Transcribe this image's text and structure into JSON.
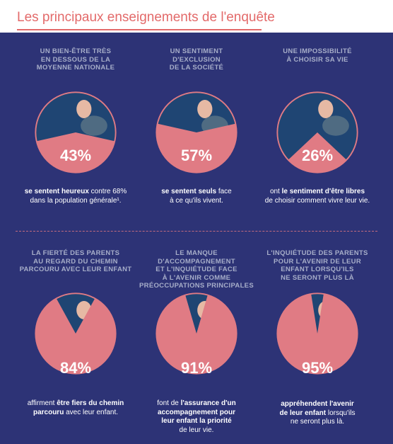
{
  "title": "Les principaux enseignements de l'enquête",
  "colors": {
    "background": "#2d3376",
    "accent": "#e36a6a",
    "pie_light": "#e07b84",
    "pie_dark": "#1f4573",
    "heading_text": "#a7aec9"
  },
  "cards": [
    {
      "heading": [
        "UN BIEN-ÊTRE TRÈS",
        "EN DESSOUS DE LA",
        "MOYENNE NATIONALE"
      ],
      "percent_label": "43%",
      "percent_value": 43,
      "caption": [
        [
          {
            "t": "se sentent heureux",
            "b": true
          },
          {
            "t": " contre 68%",
            "b": false
          }
        ],
        [
          {
            "t": "dans la population générale¹.",
            "b": false
          }
        ]
      ]
    },
    {
      "heading": [
        "UN SENTIMENT",
        "D'EXCLUSION",
        "DE LA SOCIÉTÉ"
      ],
      "percent_label": "57%",
      "percent_value": 57,
      "caption": [
        [
          {
            "t": "se sentent seuls",
            "b": true
          },
          {
            "t": " face",
            "b": false
          }
        ],
        [
          {
            "t": "à ce qu'ils vivent.",
            "b": false
          }
        ]
      ]
    },
    {
      "heading": [
        "UNE IMPOSSIBILITÉ",
        "À CHOISIR SA VIE"
      ],
      "percent_label": "26%",
      "percent_value": 26,
      "caption": [
        [
          {
            "t": "ont ",
            "b": false
          },
          {
            "t": "le sentiment d'être libres",
            "b": true
          }
        ],
        [
          {
            "t": "de choisir comment vivre leur vie.",
            "b": false
          }
        ]
      ]
    },
    {
      "heading": [
        "LA FIERTÉ DES PARENTS",
        "AU REGARD DU CHEMIN",
        "PARCOURU AVEC LEUR ENFANT"
      ],
      "percent_label": "84%",
      "percent_value": 84,
      "caption": [
        [
          {
            "t": "affirment ",
            "b": false
          },
          {
            "t": "être fiers du chemin",
            "b": true
          }
        ],
        [
          {
            "t": "parcouru",
            "b": true
          },
          {
            "t": " avec leur enfant.",
            "b": false
          }
        ]
      ]
    },
    {
      "heading": [
        "LE MANQUE D'ACCOMPAGNEMENT",
        "ET L'INQUIÉTUDE FACE",
        "À L'AVENIR COMME",
        "PRÉOCCUPATIONS PRINCIPALES"
      ],
      "percent_label": "91%",
      "percent_value": 91,
      "caption": [
        [
          {
            "t": "font de ",
            "b": false
          },
          {
            "t": "l'assurance d'un",
            "b": true
          }
        ],
        [
          {
            "t": "accompagnement pour",
            "b": true
          }
        ],
        [
          {
            "t": "leur enfant la priorité",
            "b": true
          }
        ],
        [
          {
            "t": "de leur vie.",
            "b": false
          }
        ]
      ]
    },
    {
      "heading": [
        "L'INQUIÉTUDE DES PARENTS",
        "POUR L'AVENIR DE LEUR",
        "ENFANT LORSQU'ILS",
        "NE SERONT PLUS LÀ"
      ],
      "percent_label": "95%",
      "percent_value": 95,
      "caption": [
        [
          {
            "t": "appréhendent l'avenir",
            "b": true
          }
        ],
        [
          {
            "t": "de leur enfant",
            "b": true
          },
          {
            "t": " lorsqu'ils",
            "b": false
          }
        ],
        [
          {
            "t": "ne seront plus là.",
            "b": false
          }
        ]
      ]
    }
  ]
}
